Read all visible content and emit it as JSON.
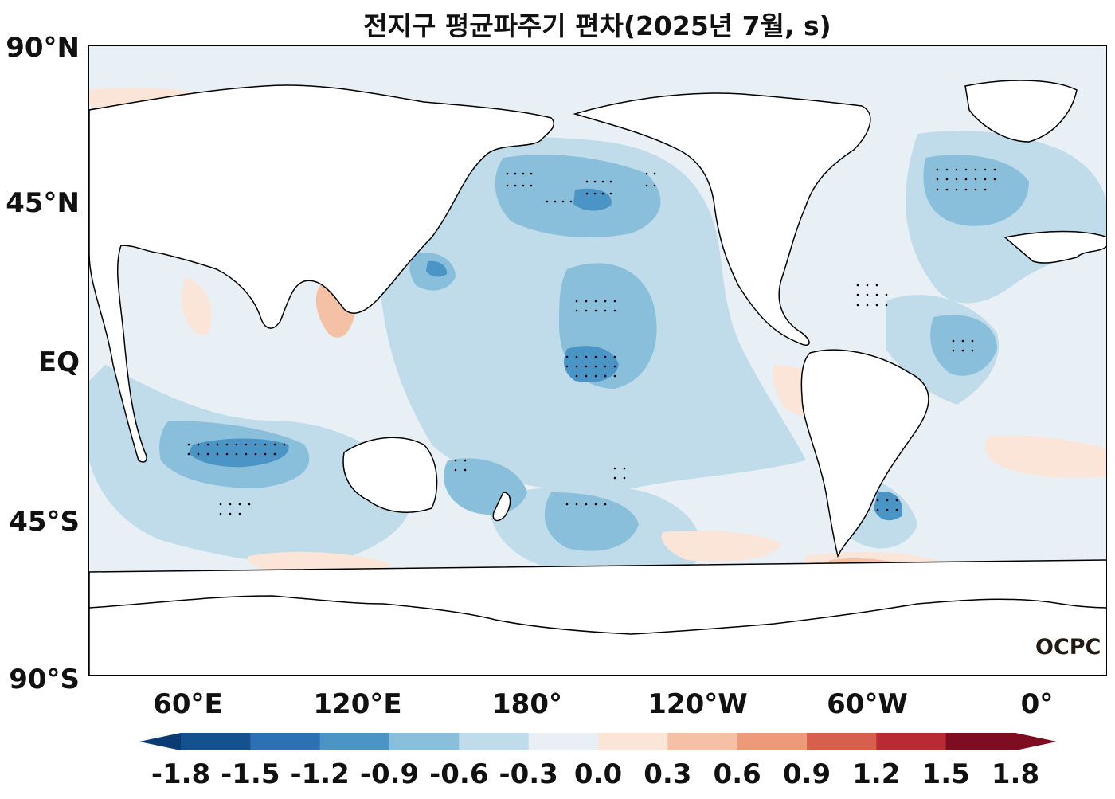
{
  "title": "전지구 평균파주기 편차(2025년 7월, s)",
  "y_labels": [
    "90°N",
    "45°N",
    "EQ",
    "45°S",
    "90°S"
  ],
  "x_labels": [
    "60°E",
    "120°E",
    "180°",
    "120°W",
    "60°W",
    "0°"
  ],
  "colorbar": {
    "labels": [
      "-1.8",
      "-1.5",
      "-1.2",
      "-0.9",
      "-0.6",
      "-0.3",
      "0.0",
      "0.3",
      "0.6",
      "0.9",
      "1.2",
      "1.5",
      "1.8"
    ],
    "colors": [
      "#0b3b73",
      "#14528f",
      "#2b71b3",
      "#4a94c6",
      "#8abfdc",
      "#c0dbea",
      "#e8f0f5",
      "#fbe4d8",
      "#f5c1a6",
      "#ee9a7a",
      "#d6604d",
      "#b82b35",
      "#7f0d22"
    ]
  },
  "logo": "OCPC",
  "colors": {
    "land": "#ffffff",
    "coast": "#000000",
    "neg_light": "#e8f0f5",
    "neg_1": "#c0dbea",
    "neg_2": "#8abfdc",
    "neg_3": "#4a94c6",
    "pos_1": "#fbe4d8",
    "pos_2": "#f5c1a6"
  }
}
